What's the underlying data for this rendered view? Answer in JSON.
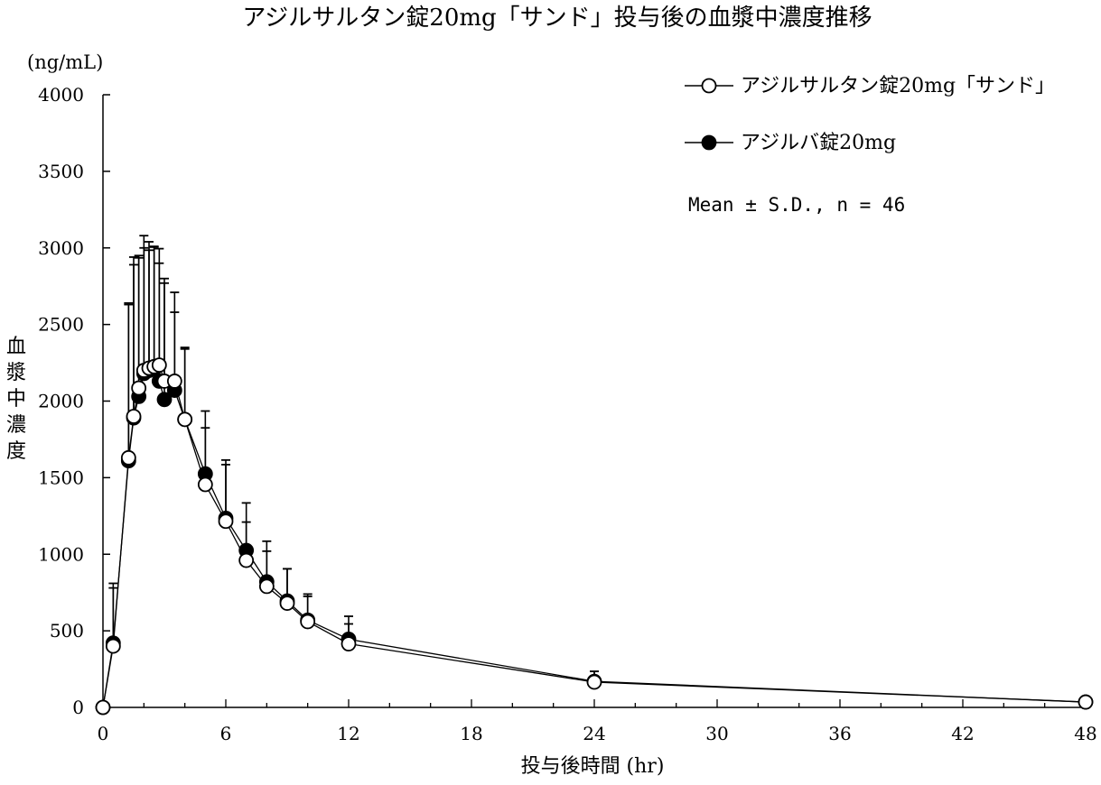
{
  "chart_data": {
    "type": "line",
    "title": "アジルサルタン錠20mg「サンド」投与後の血漿中濃度推移",
    "ylabel_unit": "(ng/mL)",
    "ylabel": "血漿中濃度",
    "xlabel": "投与後時間 (hr)",
    "xlim": [
      0,
      48
    ],
    "ylim": [
      0,
      4000
    ],
    "xticks": [
      0,
      6,
      12,
      18,
      24,
      30,
      36,
      42,
      48
    ],
    "yticks": [
      0,
      500,
      1000,
      1500,
      2000,
      2500,
      3000,
      3500,
      4000
    ],
    "grid": false,
    "legend_position": "top-right",
    "note": "Mean ± S.D., n = 46",
    "series": [
      {
        "name": "アジルサルタン錠20mg「サンド」",
        "marker": "open-circle",
        "x": [
          0,
          0.5,
          1.25,
          1.5,
          1.75,
          2,
          2.25,
          2.5,
          2.75,
          3,
          3.5,
          4,
          5,
          6,
          7,
          8,
          9,
          10,
          12,
          24,
          48
        ],
        "y": [
          0,
          400,
          1630,
          1900,
          2085,
          2200,
          2215,
          2225,
          2235,
          2130,
          2130,
          1880,
          1455,
          1215,
          960,
          790,
          680,
          560,
          415,
          165,
          35
        ],
        "sd": [
          0,
          380,
          1000,
          1040,
          850,
          800,
          770,
          780,
          760,
          640,
          580,
          470,
          370,
          370,
          250,
          230,
          225,
          165,
          130,
          70,
          15
        ]
      },
      {
        "name": "アジルバ錠20mg",
        "marker": "filled-circle",
        "x": [
          0,
          0.5,
          1.25,
          1.5,
          1.75,
          2,
          2.25,
          2.5,
          2.75,
          3,
          3.5,
          4,
          5,
          6,
          7,
          8,
          9,
          10,
          12,
          24,
          48
        ],
        "y": [
          0,
          420,
          1610,
          1890,
          2030,
          2180,
          2200,
          2210,
          2130,
          2010,
          2070,
          1880,
          1525,
          1235,
          1025,
          820,
          695,
          570,
          445,
          170,
          35
        ],
        "sd": [
          0,
          390,
          1030,
          1000,
          920,
          900,
          840,
          800,
          770,
          790,
          510,
          460,
          410,
          380,
          310,
          265,
          210,
          170,
          150,
          65,
          15
        ]
      }
    ]
  }
}
